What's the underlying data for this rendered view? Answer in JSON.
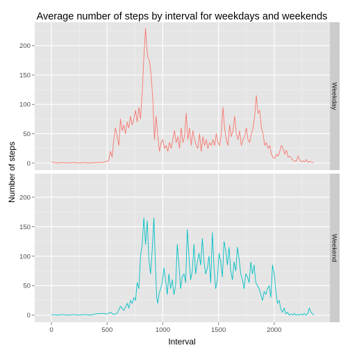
{
  "chart_data": {
    "type": "line",
    "title": "Average number of steps by interval for weekdays and weekends",
    "xlabel": "Interval",
    "ylabel": "Number of steps",
    "xlim": [
      -150,
      2500
    ],
    "ylim": [
      -12,
      240
    ],
    "x_ticks": [
      0,
      500,
      1000,
      1500,
      2000
    ],
    "y_ticks": [
      0,
      50,
      100,
      150,
      200
    ],
    "grid": true,
    "legend": "none",
    "facets": [
      {
        "label": "Weekday",
        "color": "#F8766D",
        "points": [
          [
            0,
            2
          ],
          [
            25,
            1
          ],
          [
            50,
            0
          ],
          [
            100,
            1
          ],
          [
            150,
            0
          ],
          [
            200,
            1
          ],
          [
            250,
            0
          ],
          [
            300,
            1
          ],
          [
            350,
            0
          ],
          [
            400,
            1
          ],
          [
            450,
            1
          ],
          [
            500,
            3
          ],
          [
            515,
            5
          ],
          [
            530,
            20
          ],
          [
            545,
            10
          ],
          [
            560,
            40
          ],
          [
            575,
            60
          ],
          [
            590,
            45
          ],
          [
            605,
            30
          ],
          [
            620,
            75
          ],
          [
            635,
            55
          ],
          [
            650,
            65
          ],
          [
            665,
            50
          ],
          [
            680,
            70
          ],
          [
            695,
            60
          ],
          [
            710,
            80
          ],
          [
            725,
            65
          ],
          [
            740,
            75
          ],
          [
            755,
            90
          ],
          [
            770,
            70
          ],
          [
            785,
            95
          ],
          [
            800,
            75
          ],
          [
            815,
            120
          ],
          [
            830,
            180
          ],
          [
            845,
            230
          ],
          [
            855,
            200
          ],
          [
            865,
            180
          ],
          [
            880,
            175
          ],
          [
            895,
            150
          ],
          [
            910,
            110
          ],
          [
            925,
            40
          ],
          [
            940,
            80
          ],
          [
            955,
            45
          ],
          [
            970,
            20
          ],
          [
            985,
            35
          ],
          [
            1000,
            40
          ],
          [
            1015,
            25
          ],
          [
            1030,
            30
          ],
          [
            1045,
            20
          ],
          [
            1060,
            35
          ],
          [
            1075,
            25
          ],
          [
            1090,
            40
          ],
          [
            1105,
            55
          ],
          [
            1120,
            35
          ],
          [
            1135,
            45
          ],
          [
            1150,
            25
          ],
          [
            1165,
            60
          ],
          [
            1180,
            35
          ],
          [
            1195,
            45
          ],
          [
            1210,
            85
          ],
          [
            1225,
            40
          ],
          [
            1240,
            60
          ],
          [
            1255,
            30
          ],
          [
            1270,
            55
          ],
          [
            1285,
            40
          ],
          [
            1300,
            30
          ],
          [
            1315,
            25
          ],
          [
            1330,
            50
          ],
          [
            1345,
            20
          ],
          [
            1360,
            45
          ],
          [
            1375,
            30
          ],
          [
            1390,
            40
          ],
          [
            1405,
            25
          ],
          [
            1420,
            35
          ],
          [
            1435,
            30
          ],
          [
            1450,
            40
          ],
          [
            1465,
            30
          ],
          [
            1480,
            50
          ],
          [
            1495,
            35
          ],
          [
            1510,
            30
          ],
          [
            1525,
            50
          ],
          [
            1540,
            95
          ],
          [
            1555,
            60
          ],
          [
            1570,
            40
          ],
          [
            1585,
            30
          ],
          [
            1600,
            65
          ],
          [
            1615,
            45
          ],
          [
            1630,
            55
          ],
          [
            1645,
            80
          ],
          [
            1660,
            50
          ],
          [
            1675,
            40
          ],
          [
            1690,
            55
          ],
          [
            1705,
            30
          ],
          [
            1720,
            40
          ],
          [
            1735,
            45
          ],
          [
            1750,
            60
          ],
          [
            1765,
            40
          ],
          [
            1780,
            35
          ],
          [
            1795,
            50
          ],
          [
            1810,
            60
          ],
          [
            1825,
            80
          ],
          [
            1840,
            115
          ],
          [
            1855,
            85
          ],
          [
            1870,
            90
          ],
          [
            1885,
            60
          ],
          [
            1900,
            50
          ],
          [
            1915,
            30
          ],
          [
            1930,
            35
          ],
          [
            1945,
            25
          ],
          [
            1960,
            30
          ],
          [
            1975,
            15
          ],
          [
            1990,
            10
          ],
          [
            2005,
            8
          ],
          [
            2020,
            15
          ],
          [
            2035,
            12
          ],
          [
            2050,
            20
          ],
          [
            2065,
            30
          ],
          [
            2080,
            25
          ],
          [
            2095,
            15
          ],
          [
            2110,
            22
          ],
          [
            2125,
            10
          ],
          [
            2140,
            12
          ],
          [
            2155,
            8
          ],
          [
            2170,
            5
          ],
          [
            2185,
            3
          ],
          [
            2200,
            4
          ],
          [
            2215,
            12
          ],
          [
            2230,
            5
          ],
          [
            2245,
            2
          ],
          [
            2260,
            4
          ],
          [
            2275,
            2
          ],
          [
            2290,
            6
          ],
          [
            2305,
            1
          ],
          [
            2320,
            3
          ],
          [
            2340,
            1
          ],
          [
            2355,
            1
          ]
        ]
      },
      {
        "label": "Weekend",
        "color": "#00BFC4",
        "points": [
          [
            0,
            0
          ],
          [
            25,
            1
          ],
          [
            50,
            0
          ],
          [
            100,
            1
          ],
          [
            150,
            0
          ],
          [
            200,
            1
          ],
          [
            250,
            0
          ],
          [
            300,
            1
          ],
          [
            350,
            0
          ],
          [
            400,
            2
          ],
          [
            450,
            3
          ],
          [
            500,
            2
          ],
          [
            530,
            5
          ],
          [
            560,
            1
          ],
          [
            590,
            3
          ],
          [
            620,
            15
          ],
          [
            650,
            8
          ],
          [
            680,
            20
          ],
          [
            695,
            12
          ],
          [
            710,
            25
          ],
          [
            725,
            20
          ],
          [
            740,
            30
          ],
          [
            755,
            25
          ],
          [
            770,
            55
          ],
          [
            785,
            45
          ],
          [
            800,
            100
          ],
          [
            815,
            120
          ],
          [
            830,
            165
          ],
          [
            845,
            120
          ],
          [
            860,
            160
          ],
          [
            875,
            95
          ],
          [
            890,
            70
          ],
          [
            905,
            110
          ],
          [
            920,
            165
          ],
          [
            935,
            80
          ],
          [
            945,
            30
          ],
          [
            955,
            20
          ],
          [
            965,
            35
          ],
          [
            980,
            45
          ],
          [
            995,
            55
          ],
          [
            1010,
            80
          ],
          [
            1025,
            60
          ],
          [
            1040,
            35
          ],
          [
            1055,
            70
          ],
          [
            1070,
            45
          ],
          [
            1085,
            60
          ],
          [
            1100,
            35
          ],
          [
            1115,
            50
          ],
          [
            1130,
            120
          ],
          [
            1145,
            85
          ],
          [
            1160,
            45
          ],
          [
            1175,
            65
          ],
          [
            1190,
            70
          ],
          [
            1205,
            55
          ],
          [
            1220,
            145
          ],
          [
            1235,
            100
          ],
          [
            1250,
            60
          ],
          [
            1265,
            75
          ],
          [
            1280,
            120
          ],
          [
            1295,
            70
          ],
          [
            1310,
            90
          ],
          [
            1325,
            105
          ],
          [
            1340,
            85
          ],
          [
            1355,
            130
          ],
          [
            1370,
            90
          ],
          [
            1385,
            70
          ],
          [
            1400,
            80
          ],
          [
            1415,
            100
          ],
          [
            1430,
            55
          ],
          [
            1445,
            140
          ],
          [
            1460,
            80
          ],
          [
            1475,
            45
          ],
          [
            1490,
            60
          ],
          [
            1505,
            105
          ],
          [
            1520,
            90
          ],
          [
            1535,
            65
          ],
          [
            1550,
            125
          ],
          [
            1565,
            110
          ],
          [
            1580,
            85
          ],
          [
            1595,
            115
          ],
          [
            1610,
            75
          ],
          [
            1625,
            60
          ],
          [
            1640,
            90
          ],
          [
            1655,
            75
          ],
          [
            1670,
            115
          ],
          [
            1685,
            95
          ],
          [
            1700,
            70
          ],
          [
            1715,
            60
          ],
          [
            1730,
            45
          ],
          [
            1745,
            70
          ],
          [
            1760,
            65
          ],
          [
            1775,
            55
          ],
          [
            1790,
            90
          ],
          [
            1805,
            70
          ],
          [
            1820,
            85
          ],
          [
            1835,
            55
          ],
          [
            1850,
            50
          ],
          [
            1865,
            45
          ],
          [
            1880,
            35
          ],
          [
            1895,
            25
          ],
          [
            1910,
            40
          ],
          [
            1925,
            35
          ],
          [
            1940,
            45
          ],
          [
            1955,
            50
          ],
          [
            1970,
            30
          ],
          [
            1985,
            85
          ],
          [
            2000,
            70
          ],
          [
            2015,
            40
          ],
          [
            2030,
            20
          ],
          [
            2045,
            25
          ],
          [
            2060,
            10
          ],
          [
            2075,
            5
          ],
          [
            2090,
            12
          ],
          [
            2105,
            2
          ],
          [
            2120,
            5
          ],
          [
            2135,
            0
          ],
          [
            2150,
            2
          ],
          [
            2165,
            0
          ],
          [
            2180,
            3
          ],
          [
            2195,
            0
          ],
          [
            2210,
            1
          ],
          [
            2225,
            0
          ],
          [
            2240,
            2
          ],
          [
            2255,
            0
          ],
          [
            2270,
            3
          ],
          [
            2285,
            0
          ],
          [
            2300,
            2
          ],
          [
            2315,
            12
          ],
          [
            2330,
            5
          ],
          [
            2345,
            2
          ],
          [
            2355,
            0
          ]
        ]
      }
    ]
  }
}
